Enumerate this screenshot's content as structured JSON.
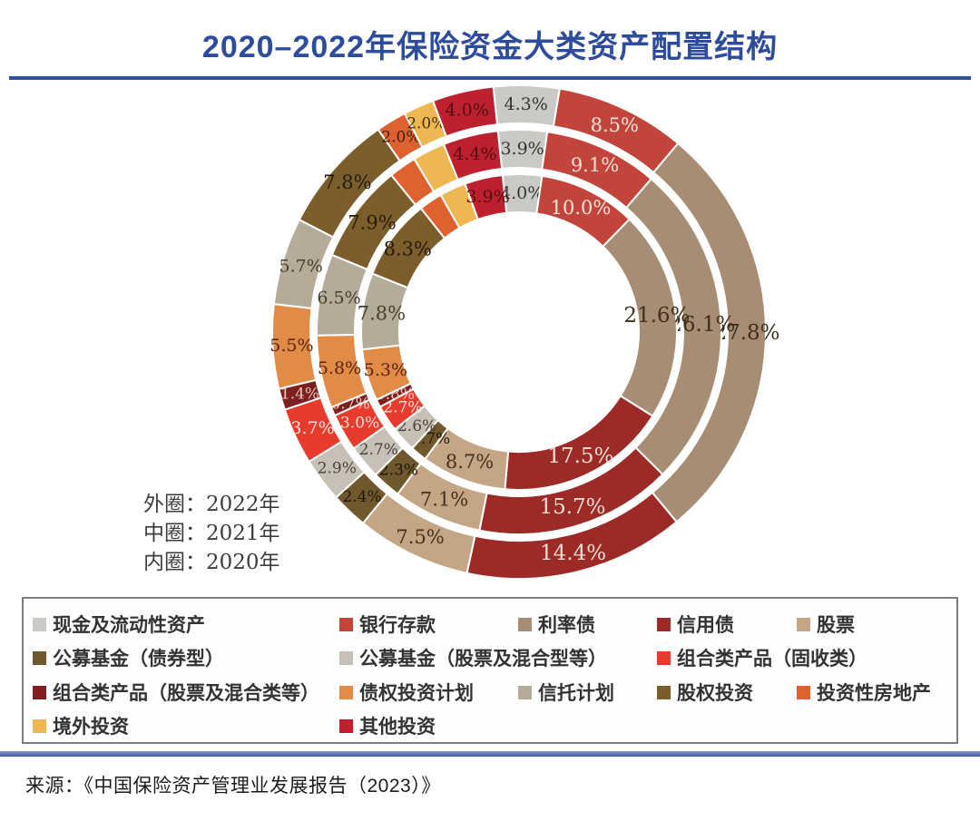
{
  "header": {
    "title": "2020–2022年保险资金大类资产配置结构"
  },
  "figure": {
    "ring_notes": [
      "外圈：2022年",
      "中圈：2021年",
      "内圈：2020年"
    ]
  },
  "chart_data": {
    "type": "pie",
    "variant": "concentric-donut",
    "title": "2020–2022年保险资金大类资产配置结构",
    "legend_position": "bottom",
    "categories": [
      "现金及流动性资产",
      "银行存款",
      "利率债",
      "信用债",
      "股票",
      "公募基金（债券型）",
      "公募基金（股票及混合型等）",
      "组合类产品（固收类）",
      "组合类产品（股票及混合类等）",
      "债权投资计划",
      "信托计划",
      "股权投资",
      "投资性房地产",
      "境外投资",
      "其他投资"
    ],
    "colors": [
      "#c9c9c6",
      "#c2453c",
      "#a78d74",
      "#9c2a26",
      "#c4a585",
      "#6f582c",
      "#c7c0b6",
      "#e73b2e",
      "#7c2022",
      "#e08b46",
      "#b4ab98",
      "#7c5d2c",
      "#de6130",
      "#eeb751",
      "#bd2130"
    ],
    "label_text_colors": [
      "#363636",
      "#f6e3da",
      "#3f2f1c",
      "#f2ddd3",
      "#44311c",
      "#1d1708",
      "#4a433b",
      "#fbe3da",
      "#eec6bd",
      "#5c2310",
      "#453e2f",
      "#241c0b",
      "#3a2012",
      "#43300e",
      "#520d10"
    ],
    "rings": [
      {
        "name": "外圈",
        "year": "2022年",
        "values": [
          4.3,
          8.5,
          27.8,
          14.4,
          7.5,
          2.4,
          2.9,
          3.7,
          1.4,
          5.5,
          5.7,
          7.8,
          2.0,
          2.0,
          4.0
        ],
        "labels": [
          "4.3%",
          "8.5%",
          "27.8%",
          "14.4%",
          "7.5%",
          "2.4%",
          "2.9%",
          "3.7%",
          "1.4%",
          "5.5%",
          "5.7%",
          "7.8%",
          "2.0%",
          "2.0%",
          "4.0%"
        ]
      },
      {
        "name": "中圈",
        "year": "2021年",
        "values": [
          3.9,
          9.1,
          26.1,
          15.7,
          7.1,
          2.3,
          2.7,
          3.0,
          0.7,
          5.8,
          6.5,
          7.9,
          2.2,
          2.6,
          4.4
        ],
        "labels": [
          "3.9%",
          "9.1%",
          "26.1%",
          "15.7%",
          "7.1%",
          "2.3%",
          "2.7%",
          "3.0%",
          "0.7%",
          "5.8%",
          "6.5%",
          "7.9%",
          "",
          "",
          "4.4%"
        ]
      },
      {
        "name": "内圈",
        "year": "2020年",
        "values": [
          4.0,
          10.0,
          21.6,
          17.5,
          8.7,
          1.7,
          2.6,
          2.7,
          0.8,
          5.3,
          7.8,
          8.3,
          2.4,
          2.7,
          3.9
        ],
        "labels": [
          "4.0%",
          "10.0%",
          "21.6%",
          "17.5%",
          "8.7%",
          "1.7%",
          "2.6%",
          "2.7%",
          "0.8%",
          "5.3%",
          "7.8%",
          "8.3%",
          "",
          "",
          "3.9%"
        ]
      }
    ]
  },
  "legend": {
    "rows": [
      [
        {
          "cat": 0,
          "col": 0
        },
        {
          "cat": 1,
          "col": 1
        },
        {
          "cat": 2,
          "col": 2
        },
        {
          "cat": 3,
          "col": 3
        },
        {
          "cat": 4,
          "col": 4
        }
      ],
      [
        {
          "cat": 5,
          "col": 0
        },
        {
          "cat": 6,
          "col": 1
        },
        {
          "cat": 7,
          "col": 3
        }
      ],
      [
        {
          "cat": 8,
          "col": 0
        },
        {
          "cat": 9,
          "col": 1
        },
        {
          "cat": 10,
          "col": 2
        },
        {
          "cat": 11,
          "col": 3
        },
        {
          "cat": 12,
          "col": 4
        }
      ],
      [
        {
          "cat": 13,
          "col": 0
        },
        {
          "cat": 14,
          "col": 1
        }
      ]
    ]
  },
  "footer": {
    "source": "来源：《中国保险资产管理业发展报告（2023）》"
  }
}
